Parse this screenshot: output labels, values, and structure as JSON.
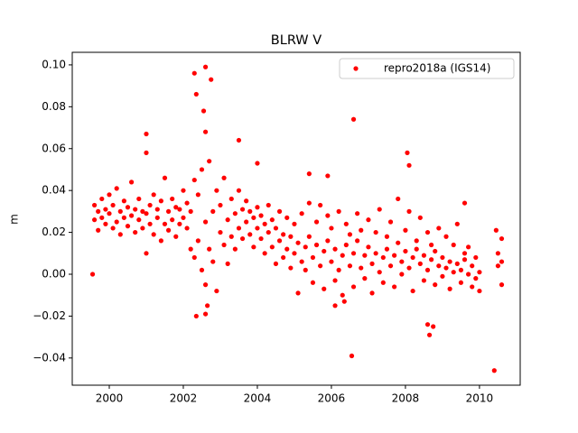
{
  "chart_data": {
    "type": "scatter",
    "title": "BLRW V",
    "y_label": "m",
    "xlim": [
      1999.0,
      2011.1
    ],
    "ylim": [
      -0.053,
      0.106
    ],
    "xticks": [
      2000,
      2002,
      2004,
      2006,
      2008,
      2010
    ],
    "yticks": [
      {
        "value": -0.04,
        "label": "−0.04"
      },
      {
        "value": -0.02,
        "label": "−0.02"
      },
      {
        "value": 0,
        "label": "0.00"
      },
      {
        "value": 0.02,
        "label": "0.02"
      },
      {
        "value": 0.04,
        "label": "0.04"
      },
      {
        "value": 0.06,
        "label": "0.06"
      },
      {
        "value": 0.08,
        "label": "0.08"
      },
      {
        "value": 0.1,
        "label": "0.10"
      }
    ],
    "legend": "upper right",
    "series": [
      {
        "name": "repro2018a (IGS14)",
        "color": "#ff0000",
        "x": [
          1999.6,
          1999.6,
          1999.7,
          1999.7,
          1999.8,
          1999.8,
          1999.9,
          1999.9,
          2000.0,
          2000.0,
          2000.1,
          2000.1,
          2000.2,
          2000.2,
          2000.3,
          2000.3,
          2000.4,
          2000.4,
          2000.5,
          2000.5,
          2000.6,
          2000.6,
          2000.7,
          2000.7,
          2000.8,
          2000.8,
          2000.9,
          2000.9,
          2001.0,
          2001.0,
          2001.1,
          2001.1,
          2001.2,
          2001.2,
          2001.3,
          2001.3,
          2001.4,
          2001.4,
          2001.5,
          2001.5,
          2001.6,
          2001.6,
          2001.7,
          2001.7,
          2001.8,
          2001.8,
          2001.9,
          2001.9,
          2002.0,
          2002.0,
          2002.1,
          2002.1,
          2002.2,
          2002.2,
          2002.3,
          2002.3,
          2002.4,
          2002.4,
          2002.5,
          2002.5,
          2002.6,
          2002.6,
          2002.7,
          2002.7,
          2002.8,
          2002.8,
          2002.9,
          2002.9,
          2003.0,
          2003.0,
          2003.1,
          2003.1,
          2003.2,
          2003.2,
          2003.3,
          2003.3,
          2003.4,
          2003.4,
          2003.5,
          2003.5,
          2003.6,
          2003.6,
          2003.7,
          2003.7,
          2003.8,
          2003.8,
          2003.9,
          2003.9,
          2004.0,
          2004.0,
          2004.1,
          2004.1,
          2004.2,
          2004.2,
          2004.3,
          2004.3,
          2004.4,
          2004.4,
          2004.5,
          2004.5,
          2004.6,
          2004.6,
          2004.7,
          2004.7,
          2004.8,
          2004.8,
          2004.9,
          2004.9,
          2005.0,
          2005.0,
          2005.1,
          2005.1,
          2005.2,
          2005.2,
          2005.3,
          2005.3,
          2005.4,
          2005.4,
          2005.5,
          2005.5,
          2005.6,
          2005.6,
          2005.7,
          2005.7,
          2005.8,
          2005.8,
          2005.9,
          2005.9,
          2006.0,
          2006.0,
          2006.1,
          2006.1,
          2006.2,
          2006.2,
          2006.3,
          2006.3,
          2006.4,
          2006.4,
          2006.5,
          2006.5,
          2006.6,
          2006.6,
          2006.7,
          2006.7,
          2006.8,
          2006.8,
          2006.9,
          2006.9,
          2007.0,
          2007.0,
          2007.1,
          2007.1,
          2007.2,
          2007.2,
          2007.3,
          2007.3,
          2007.4,
          2007.4,
          2007.5,
          2007.5,
          2007.6,
          2007.6,
          2007.7,
          2007.7,
          2007.8,
          2007.8,
          2007.9,
          2007.9,
          2008.0,
          2008.0,
          2008.1,
          2008.1,
          2008.2,
          2008.2,
          2008.3,
          2008.3,
          2008.4,
          2008.4,
          2008.5,
          2008.5,
          2008.6,
          2008.6,
          2008.7,
          2008.7,
          2008.8,
          2008.8,
          2008.9,
          2008.9,
          2009.0,
          2009.0,
          2009.1,
          2009.1,
          2009.2,
          2009.2,
          2009.3,
          2009.3,
          2009.4,
          2009.4,
          2009.5,
          2009.5,
          2009.6,
          2009.6,
          2009.7,
          2009.7,
          2009.8,
          2009.8,
          2009.9,
          2009.9,
          2010.0,
          2010.0,
          2010.5,
          2010.5,
          2010.6,
          2010.6,
          2010.6,
          1999.55,
          2001.0,
          2001.0,
          2002.3,
          2002.35,
          2002.6,
          2002.75,
          2002.55,
          2002.6,
          2002.35,
          2002.6,
          2002.65,
          2003.5,
          2004.0,
          2005.4,
          2006.6,
          2006.55,
          2008.05,
          2008.1,
          2008.65,
          2008.6,
          2008.75,
          2010.4,
          2010.45,
          2009.6,
          2005.9,
          2006.1,
          2006.35
        ],
        "values": [
          0.026,
          0.033,
          0.03,
          0.021,
          0.036,
          0.027,
          0.024,
          0.031,
          0.029,
          0.038,
          0.033,
          0.022,
          0.025,
          0.041,
          0.03,
          0.019,
          0.035,
          0.027,
          0.023,
          0.032,
          0.028,
          0.044,
          0.031,
          0.02,
          0.026,
          0.036,
          0.022,
          0.03,
          0.029,
          0.01,
          0.033,
          0.024,
          0.019,
          0.038,
          0.027,
          0.031,
          0.035,
          0.016,
          0.024,
          0.046,
          0.03,
          0.021,
          0.026,
          0.036,
          0.018,
          0.032,
          0.031,
          0.024,
          0.027,
          0.04,
          0.022,
          0.034,
          0.03,
          0.012,
          0.008,
          0.045,
          0.016,
          0.038,
          0.002,
          0.05,
          0.025,
          -0.005,
          0.012,
          0.054,
          0.03,
          0.006,
          -0.008,
          0.04,
          0.02,
          0.033,
          0.014,
          0.046,
          0.026,
          0.005,
          0.018,
          0.036,
          0.029,
          0.012,
          0.022,
          0.04,
          0.031,
          0.017,
          0.025,
          0.035,
          0.019,
          0.03,
          0.027,
          0.013,
          0.022,
          0.032,
          0.017,
          0.028,
          0.024,
          0.01,
          0.02,
          0.033,
          0.013,
          0.026,
          0.022,
          0.005,
          0.016,
          0.03,
          0.019,
          0.008,
          0.012,
          0.027,
          0.018,
          0.003,
          0.01,
          0.024,
          0.015,
          -0.009,
          0.006,
          0.029,
          0.013,
          0.002,
          0.018,
          0.034,
          0.008,
          -0.004,
          0.014,
          0.025,
          0.004,
          0.033,
          0.011,
          -0.007,
          0.016,
          0.028,
          0.006,
          0.022,
          0.012,
          -0.003,
          0.002,
          0.03,
          0.009,
          -0.01,
          0.014,
          0.024,
          0.004,
          0.019,
          0.01,
          -0.006,
          0.016,
          0.029,
          0.003,
          0.021,
          0.009,
          -0.002,
          0.013,
          0.026,
          0.005,
          -0.009,
          0.01,
          0.02,
          0.001,
          0.031,
          0.008,
          -0.004,
          0.012,
          0.018,
          0.004,
          0.025,
          0.009,
          -0.006,
          0.015,
          0.036,
          0.006,
          0.0,
          0.011,
          0.021,
          0.003,
          0.03,
          0.008,
          -0.008,
          0.012,
          0.016,
          0.005,
          0.027,
          0.009,
          -0.003,
          0.002,
          0.02,
          0.007,
          0.014,
          0.011,
          -0.005,
          0.004,
          0.022,
          0.008,
          -0.001,
          0.003,
          0.018,
          0.006,
          -0.007,
          0.001,
          0.014,
          0.005,
          0.024,
          0.002,
          -0.004,
          0.007,
          0.01,
          0.0,
          0.013,
          0.004,
          -0.006,
          -0.002,
          0.008,
          0.001,
          -0.008,
          0.004,
          0.01,
          -0.005,
          0.017,
          0.006,
          0.0,
          0.067,
          0.058,
          0.096,
          0.086,
          0.099,
          0.093,
          0.078,
          0.068,
          -0.02,
          -0.019,
          -0.015,
          0.064,
          0.053,
          0.048,
          0.074,
          -0.039,
          0.058,
          0.052,
          -0.029,
          -0.024,
          -0.025,
          -0.046,
          0.021,
          0.034,
          0.047,
          -0.015,
          -0.013
        ]
      }
    ]
  }
}
